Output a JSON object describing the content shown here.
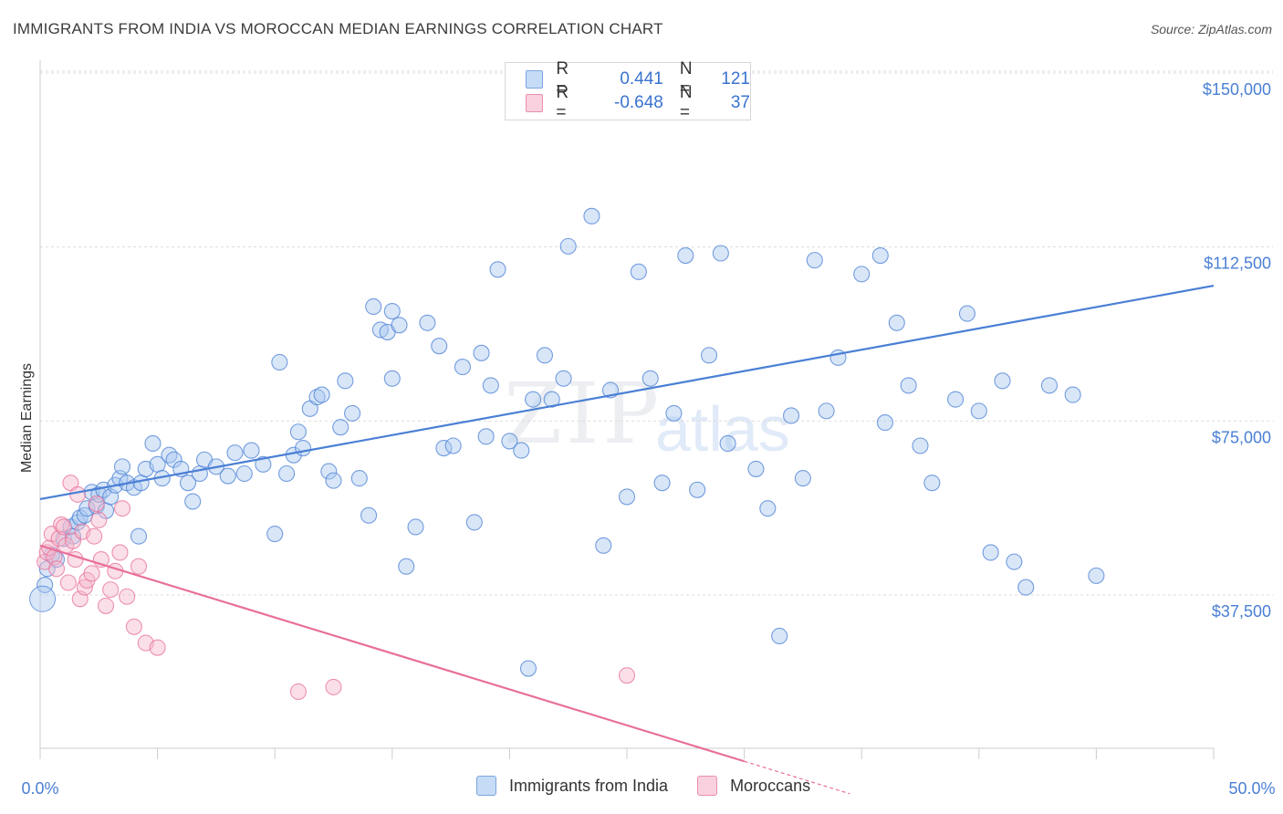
{
  "title": "IMMIGRANTS FROM INDIA VS MOROCCAN MEDIAN EARNINGS CORRELATION CHART",
  "source": "Source: ZipAtlas.com",
  "watermark": {
    "zip": "ZIP",
    "atlas": "atlas"
  },
  "legend": {
    "rows": [
      {
        "r_label": "R =",
        "r_value": "0.441",
        "n_label": "N =",
        "n_value": "121",
        "color": "#a8c8f0"
      },
      {
        "r_label": "R =",
        "r_value": "-0.648",
        "n_label": "N =",
        "n_value": "37",
        "color": "#f5b8cc"
      }
    ]
  },
  "bottom_legend": [
    {
      "label": "Immigrants from India",
      "color": "#a8c8f0"
    },
    {
      "label": "Moroccans",
      "color": "#f5b8cc"
    }
  ],
  "chart_data": {
    "type": "scatter",
    "xlabel": "",
    "ylabel": "Median Earnings",
    "xlim": [
      0,
      50
    ],
    "ylim": [
      0,
      150000
    ],
    "x_tick_labels": [
      "0.0%",
      "50.0%"
    ],
    "y_ticks": [
      37500,
      75000,
      112500,
      150000
    ],
    "y_tick_labels": [
      "$37,500",
      "$75,000",
      "$112,500",
      "$150,000"
    ],
    "series": [
      {
        "name": "Immigrants from India",
        "color": "#4a7fd4",
        "fill": "#a8c8f0",
        "trend": {
          "x": [
            0,
            50
          ],
          "y": [
            61500,
            107500
          ]
        },
        "points": [
          [
            0.2,
            43000
          ],
          [
            0.3,
            46500
          ],
          [
            0.5,
            49500
          ],
          [
            0.7,
            48500
          ],
          [
            1.0,
            53000
          ],
          [
            1.3,
            55500
          ],
          [
            1.4,
            53500
          ],
          [
            1.6,
            56500
          ],
          [
            1.7,
            57500
          ],
          [
            1.9,
            58000
          ],
          [
            2.0,
            59500
          ],
          [
            2.2,
            63000
          ],
          [
            2.4,
            60000
          ],
          [
            2.5,
            62500
          ],
          [
            2.7,
            63500
          ],
          [
            2.8,
            59000
          ],
          [
            3.0,
            62000
          ],
          [
            3.2,
            64500
          ],
          [
            3.4,
            66000
          ],
          [
            3.5,
            68500
          ],
          [
            3.7,
            65000
          ],
          [
            4.0,
            64000
          ],
          [
            4.2,
            53500
          ],
          [
            4.3,
            65000
          ],
          [
            4.5,
            68000
          ],
          [
            4.8,
            73500
          ],
          [
            5.0,
            69000
          ],
          [
            5.2,
            66000
          ],
          [
            5.5,
            71000
          ],
          [
            5.7,
            70000
          ],
          [
            6.0,
            68000
          ],
          [
            6.3,
            65000
          ],
          [
            6.5,
            61000
          ],
          [
            6.8,
            67000
          ],
          [
            7.0,
            70000
          ],
          [
            7.5,
            68500
          ],
          [
            8.0,
            66500
          ],
          [
            8.3,
            71500
          ],
          [
            8.7,
            67000
          ],
          [
            9.0,
            72000
          ],
          [
            9.5,
            69000
          ],
          [
            10.0,
            54000
          ],
          [
            10.2,
            91000
          ],
          [
            10.5,
            67000
          ],
          [
            10.8,
            71000
          ],
          [
            11.0,
            76000
          ],
          [
            11.2,
            72500
          ],
          [
            11.5,
            81000
          ],
          [
            11.8,
            83500
          ],
          [
            12.0,
            84000
          ],
          [
            12.3,
            67500
          ],
          [
            12.5,
            65500
          ],
          [
            12.8,
            77000
          ],
          [
            13.0,
            87000
          ],
          [
            13.3,
            80000
          ],
          [
            13.6,
            66000
          ],
          [
            14.0,
            58000
          ],
          [
            14.5,
            98000
          ],
          [
            14.8,
            97500
          ],
          [
            15.0,
            87500
          ],
          [
            15.3,
            99000
          ],
          [
            15.6,
            47000
          ],
          [
            16.0,
            55500
          ],
          [
            16.5,
            99500
          ],
          [
            17.0,
            94500
          ],
          [
            17.2,
            72500
          ],
          [
            17.6,
            73000
          ],
          [
            18.0,
            90000
          ],
          [
            18.5,
            56500
          ],
          [
            18.8,
            93000
          ],
          [
            19.2,
            86000
          ],
          [
            19.5,
            111000
          ],
          [
            20.0,
            74000
          ],
          [
            20.5,
            72000
          ],
          [
            21.0,
            83000
          ],
          [
            21.5,
            92500
          ],
          [
            21.8,
            83000
          ],
          [
            22.3,
            87500
          ],
          [
            22.5,
            116000
          ],
          [
            23.5,
            122500
          ],
          [
            24.0,
            51500
          ],
          [
            24.3,
            85000
          ],
          [
            25.0,
            62000
          ],
          [
            25.5,
            110500
          ],
          [
            26.0,
            87500
          ],
          [
            26.5,
            65000
          ],
          [
            27.0,
            80000
          ],
          [
            27.5,
            114000
          ],
          [
            28.0,
            63500
          ],
          [
            28.5,
            92500
          ],
          [
            29.0,
            114500
          ],
          [
            29.3,
            73500
          ],
          [
            30.5,
            68000
          ],
          [
            31.0,
            59500
          ],
          [
            31.5,
            32000
          ],
          [
            32.0,
            79500
          ],
          [
            32.5,
            66000
          ],
          [
            33.0,
            113000
          ],
          [
            33.5,
            80500
          ],
          [
            34.0,
            92000
          ],
          [
            35.0,
            110000
          ],
          [
            35.8,
            114000
          ],
          [
            36.0,
            78000
          ],
          [
            36.5,
            99500
          ],
          [
            37.0,
            86000
          ],
          [
            37.5,
            73000
          ],
          [
            38.0,
            65000
          ],
          [
            39.0,
            83000
          ],
          [
            39.5,
            101500
          ],
          [
            40.0,
            80500
          ],
          [
            40.5,
            50000
          ],
          [
            41.0,
            87000
          ],
          [
            41.5,
            48000
          ],
          [
            42.0,
            42500
          ],
          [
            43.0,
            86000
          ],
          [
            44.0,
            84000
          ],
          [
            45.0,
            45000
          ],
          [
            19.0,
            75000
          ],
          [
            20.8,
            25000
          ],
          [
            14.2,
            103000
          ],
          [
            15.0,
            102000
          ]
        ]
      },
      {
        "name": "Moroccans",
        "color": "#e8709a",
        "fill": "#f5b8cc",
        "trend": {
          "x": [
            0,
            30
          ],
          "y": [
            51500,
            5000
          ]
        },
        "trend_dashed": {
          "x": [
            30,
            34.5
          ],
          "y": [
            5000,
            -2000
          ]
        },
        "points": [
          [
            0.2,
            48000
          ],
          [
            0.3,
            50000
          ],
          [
            0.4,
            51000
          ],
          [
            0.5,
            54000
          ],
          [
            0.6,
            49000
          ],
          [
            0.7,
            46500
          ],
          [
            0.8,
            53000
          ],
          [
            0.9,
            56000
          ],
          [
            1.0,
            55500
          ],
          [
            1.1,
            51500
          ],
          [
            1.2,
            43500
          ],
          [
            1.3,
            65000
          ],
          [
            1.4,
            52500
          ],
          [
            1.5,
            48500
          ],
          [
            1.6,
            62500
          ],
          [
            1.7,
            40000
          ],
          [
            1.8,
            54500
          ],
          [
            1.9,
            42500
          ],
          [
            2.0,
            44000
          ],
          [
            2.2,
            45500
          ],
          [
            2.3,
            53500
          ],
          [
            2.4,
            60500
          ],
          [
            2.5,
            57000
          ],
          [
            2.6,
            48500
          ],
          [
            2.8,
            38500
          ],
          [
            3.0,
            42000
          ],
          [
            3.2,
            46000
          ],
          [
            3.4,
            50000
          ],
          [
            3.5,
            59500
          ],
          [
            3.7,
            40500
          ],
          [
            4.0,
            34000
          ],
          [
            4.2,
            47000
          ],
          [
            4.5,
            30500
          ],
          [
            5.0,
            29500
          ],
          [
            11.0,
            20000
          ],
          [
            12.5,
            21000
          ],
          [
            25.0,
            23500
          ]
        ]
      }
    ]
  }
}
